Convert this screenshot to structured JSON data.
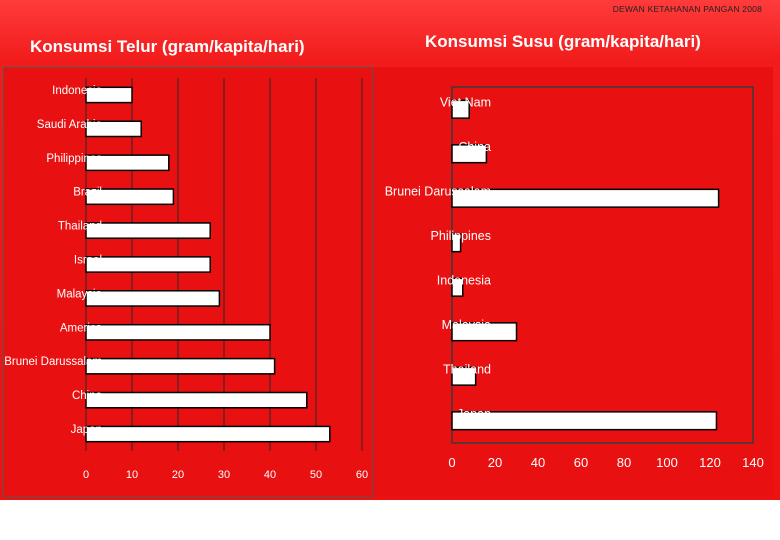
{
  "header": {
    "credit": "DEWAN KETAHANAN PANGAN 2008"
  },
  "chart_data": [
    {
      "type": "bar",
      "orientation": "horizontal",
      "title": "Konsumsi Telur  (gram/kapita/hari)",
      "categories": [
        "Indonesia",
        "Saudi Arabia",
        "Philippines",
        "Brazil",
        "Thailand",
        "Israel",
        "Malaysia",
        "America",
        "Brunei Darussalam",
        "China",
        "Japan"
      ],
      "values": [
        10,
        12,
        18,
        19,
        27,
        27,
        29,
        40,
        41,
        48,
        53
      ],
      "xlim": [
        0,
        60
      ],
      "xticks": [
        "0",
        "10",
        "20",
        "30",
        "40",
        "50",
        "60"
      ],
      "grid": true,
      "colors": {
        "bar": "#ffffff",
        "bar_border": "#000000",
        "background": "#e81010"
      }
    },
    {
      "type": "bar",
      "orientation": "horizontal",
      "title": "Konsumsi Susu (gram/kapita/hari)",
      "categories": [
        "Viet Nam",
        "China",
        "Brunei Darussalam",
        "Philippines",
        "Indonesia",
        "Malaysia",
        "Thailand",
        "Japan"
      ],
      "values": [
        8,
        16,
        124,
        4,
        5,
        30,
        11,
        123
      ],
      "xlim": [
        0,
        140
      ],
      "xticks": [
        "0",
        "20",
        "40",
        "60",
        "80",
        "100",
        "120",
        "140"
      ],
      "grid": false,
      "colors": {
        "bar": "#ffffff",
        "bar_border": "#000000",
        "background": "#e81010"
      }
    }
  ]
}
